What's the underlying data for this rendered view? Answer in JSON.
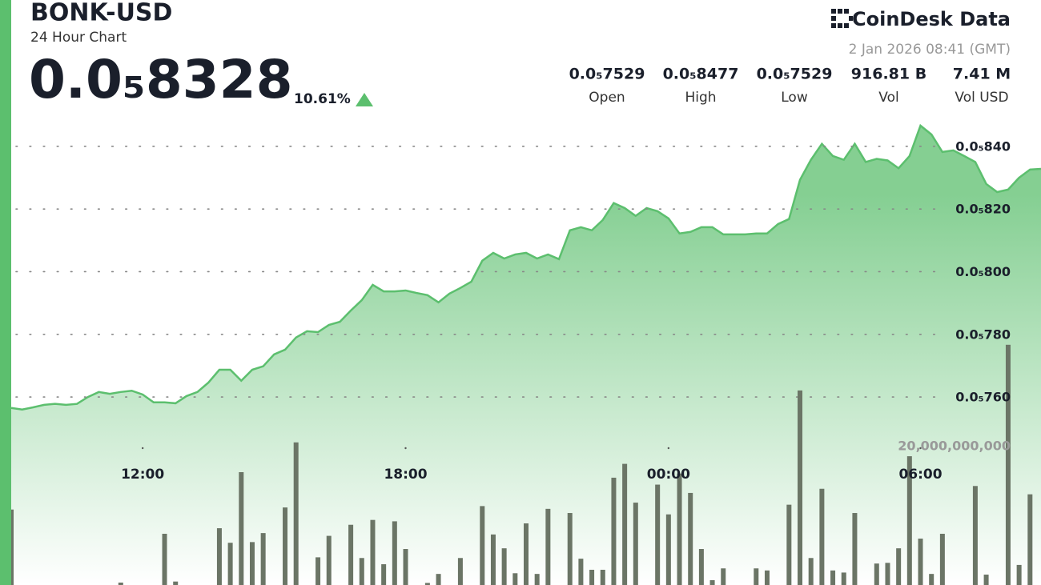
{
  "header": {
    "symbol": "BONK-USD",
    "subtitle": "24 Hour Chart",
    "price": "0.0₅8328",
    "change": "10.61%",
    "brand": "CoinDesk Data",
    "timestamp": "2 Jan 2026 08:41 (GMT)",
    "stats": [
      {
        "value": "0.0₅7529",
        "label": "Open"
      },
      {
        "value": "0.0₅8477",
        "label": "High"
      },
      {
        "value": "0.0₅7529",
        "label": "Low"
      },
      {
        "value": "916.81 B",
        "label": "Vol"
      },
      {
        "value": "7.41 M",
        "label": "Vol USD"
      }
    ]
  },
  "chart_data": {
    "type": "area",
    "categories": [
      null,
      null,
      null,
      null,
      null,
      null,
      null,
      null,
      null,
      null,
      null,
      null,
      "12:00",
      null,
      null,
      null,
      null,
      null,
      null,
      null,
      null,
      null,
      null,
      null,
      null,
      null,
      null,
      null,
      null,
      null,
      null,
      null,
      null,
      null,
      null,
      null,
      "18:00",
      null,
      null,
      null,
      null,
      null,
      null,
      null,
      null,
      null,
      null,
      null,
      null,
      null,
      null,
      null,
      null,
      null,
      null,
      null,
      null,
      null,
      null,
      null,
      "00:00",
      null,
      null,
      null,
      null,
      null,
      null,
      null,
      null,
      null,
      null,
      null,
      null,
      null,
      null,
      null,
      null,
      null,
      null,
      null,
      null,
      null,
      null,
      "06:00",
      null,
      null,
      null,
      null,
      null,
      null,
      null,
      null,
      null,
      null,
      null
    ],
    "series": [
      {
        "type": "area",
        "color": "#5cbf6e",
        "values": [
          7.565e-06,
          7.56e-06,
          7.567e-06,
          7.575e-06,
          7.578e-06,
          7.575e-06,
          7.578e-06,
          7.6e-06,
          7.616e-06,
          7.61e-06,
          7.616e-06,
          7.62e-06,
          7.608e-06,
          7.583e-06,
          7.583e-06,
          7.58e-06,
          7.603e-06,
          7.616e-06,
          7.646e-06,
          7.687e-06,
          7.687e-06,
          7.652e-06,
          7.687e-06,
          7.698e-06,
          7.736e-06,
          7.751e-06,
          7.79e-06,
          7.81e-06,
          7.807e-06,
          7.83e-06,
          7.84e-06,
          7.876e-06,
          7.909e-06,
          7.958e-06,
          7.937e-06,
          7.937e-06,
          7.94e-06,
          7.932e-06,
          7.925e-06,
          7.902e-06,
          7.93e-06,
          7.948e-06,
          7.968e-06,
          8.035e-06,
          8.06e-06,
          8.042e-06,
          8.055e-06,
          8.06e-06,
          8.042e-06,
          8.055e-06,
          8.04e-06,
          8.132e-06,
          8.142e-06,
          8.132e-06,
          8.165e-06,
          8.219e-06,
          8.203e-06,
          8.178e-06,
          8.203e-06,
          8.193e-06,
          8.17e-06,
          8.122e-06,
          8.127e-06,
          8.142e-06,
          8.142e-06,
          8.119e-06,
          8.119e-06,
          8.119e-06,
          8.122e-06,
          8.122e-06,
          8.152e-06,
          8.168e-06,
          8.293e-06,
          8.357e-06,
          8.408e-06,
          8.369e-06,
          8.357e-06,
          8.408e-06,
          8.35e-06,
          8.36e-06,
          8.355e-06,
          8.33e-06,
          8.369e-06,
          8.466e-06,
          8.438e-06,
          8.382e-06,
          8.387e-06,
          8.369e-06,
          8.35e-06,
          8.28e-06,
          8.254e-06,
          8.262e-06,
          8.3e-06,
          8.326e-06,
          8.328e-06
        ]
      },
      {
        "type": "bar",
        "axis": "y2",
        "color": "#6b7566",
        "values": [
          10900000000.0,
          0,
          0,
          0,
          0,
          0,
          0,
          0,
          0,
          0,
          350000000.0,
          0,
          0,
          0,
          7400000000.0,
          500000000.0,
          0,
          0,
          0,
          8200000000.0,
          6100000000.0,
          16300000000.0,
          6200000000.0,
          7500000000.0,
          0,
          11200000000.0,
          20600000000.0,
          0,
          4000000000.0,
          7100000000.0,
          0,
          8700000000.0,
          3900000000.0,
          9400000000.0,
          3000000000.0,
          9200000000.0,
          5200000000.0,
          0,
          300000000.0,
          1600000000.0,
          0,
          3900000000.0,
          0,
          11400000000.0,
          7300000000.0,
          5300000000.0,
          1700000000.0,
          8900000000.0,
          1600000000.0,
          11000000000.0,
          0,
          10400000000.0,
          3800000000.0,
          2200000000.0,
          2200000000.0,
          15500000000.0,
          17500000000.0,
          11900000000.0,
          0,
          14500000000.0,
          10200000000.0,
          16100000000.0,
          13300000000.0,
          5200000000.0,
          700000000.0,
          2400000000.0,
          0,
          0,
          2400000000.0,
          2100000000.0,
          0,
          11600000000.0,
          28100000000.0,
          3900000000.0,
          13900000000.0,
          2100000000.0,
          1800000000.0,
          10400000000.0,
          0,
          3100000000.0,
          3200000000.0,
          5300000000.0,
          18600000000.0,
          6700000000.0,
          1600000000.0,
          7400000000.0,
          0,
          0,
          14300000000.0,
          1500000000.0,
          0,
          34700000000.0,
          2900000000.0,
          13100000000.0,
          0
        ]
      }
    ],
    "ylim": [
      7e-06,
      8.867e-06
    ],
    "yticks": [
      {
        "value": 7.6e-06,
        "label": "0.0₅760"
      },
      {
        "value": 7.8e-06,
        "label": "0.0₅780"
      },
      {
        "value": 8e-06,
        "label": "0.0₅800"
      },
      {
        "value": 8.2e-06,
        "label": "0.0₅820"
      },
      {
        "value": 8.4e-06,
        "label": "0.0₅840"
      }
    ],
    "y2lim": [
      0,
      84500000000.0
    ],
    "y2ticks": [
      {
        "value": 20000000000.0,
        "label": "20,000,000,000"
      }
    ],
    "grid": true
  }
}
